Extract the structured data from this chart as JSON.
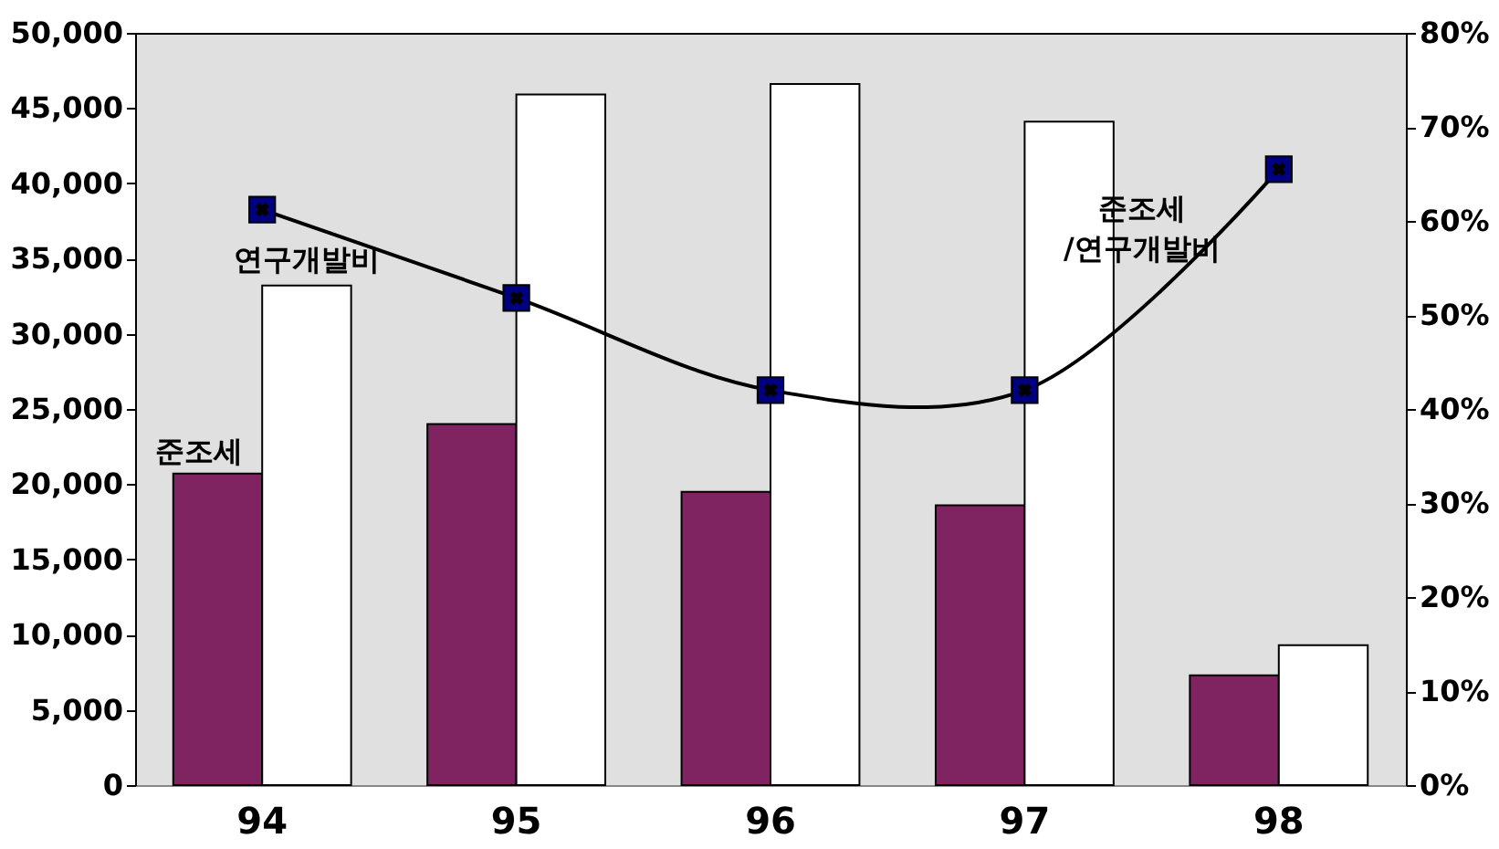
{
  "chart_data": {
    "type": "bar",
    "categories": [
      "94",
      "95",
      "96",
      "97",
      "98"
    ],
    "series": [
      {
        "name": "준조세",
        "color": "#7f2460",
        "values": [
          20700,
          24000,
          19500,
          18600,
          7300
        ]
      },
      {
        "name": "연구개발비",
        "color": "#ffffff",
        "values": [
          33200,
          45900,
          46600,
          44100,
          9300
        ]
      },
      {
        "name": "준조세/연구개발비",
        "type": "line",
        "axis": "y2",
        "color": "#000000",
        "values": [
          61.2,
          51.8,
          42.0,
          42.0,
          65.5
        ]
      }
    ],
    "ylim": [
      0,
      50000
    ],
    "yticks": [
      {
        "value": 0,
        "label": "0"
      },
      {
        "value": 5000,
        "label": "5,000"
      },
      {
        "value": 10000,
        "label": "10,000"
      },
      {
        "value": 15000,
        "label": "15,000"
      },
      {
        "value": 20000,
        "label": "20,000"
      },
      {
        "value": 25000,
        "label": "25,000"
      },
      {
        "value": 30000,
        "label": "30,000"
      },
      {
        "value": 35000,
        "label": "35,000"
      },
      {
        "value": 40000,
        "label": "40,000"
      },
      {
        "value": 45000,
        "label": "45,000"
      },
      {
        "value": 50000,
        "label": "50,000"
      }
    ],
    "y2lim": [
      0,
      80
    ],
    "y2ticks": [
      {
        "value": 0,
        "label": "0%"
      },
      {
        "value": 10,
        "label": "10%"
      },
      {
        "value": 20,
        "label": "20%"
      },
      {
        "value": 30,
        "label": "30%"
      },
      {
        "value": 40,
        "label": "40%"
      },
      {
        "value": 50,
        "label": "50%"
      },
      {
        "value": 60,
        "label": "60%"
      },
      {
        "value": 70,
        "label": "70%"
      },
      {
        "value": 80,
        "label": "80%"
      }
    ],
    "grid": false,
    "legend": false,
    "marker": "square",
    "line_style": "solid"
  }
}
